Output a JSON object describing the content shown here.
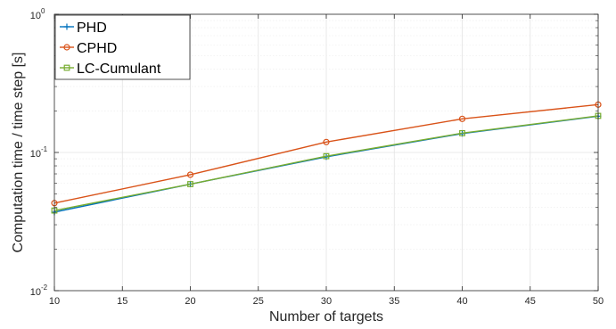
{
  "chart_data": {
    "type": "line",
    "xlabel": "Number of targets",
    "ylabel": "Computation time / time step [s]",
    "x": [
      10,
      20,
      30,
      40,
      50
    ],
    "xlim": [
      10,
      50
    ],
    "xticks": [
      "10",
      "15",
      "20",
      "25",
      "30",
      "35",
      "40",
      "45",
      "50"
    ],
    "y_scale": "log",
    "ylim": [
      0.01,
      1
    ],
    "yticks": [
      {
        "base": "10",
        "exp": "-2"
      },
      {
        "base": "10",
        "exp": "-1"
      },
      {
        "base": "10",
        "exp": "0"
      }
    ],
    "grid": true,
    "legend_position": "top-left",
    "series": [
      {
        "name": "PHD",
        "color": "#0072BD",
        "marker": "plus",
        "values": [
          0.037,
          0.059,
          0.093,
          0.137,
          0.183
        ]
      },
      {
        "name": "CPHD",
        "color": "#D95319",
        "marker": "circle",
        "values": [
          0.043,
          0.069,
          0.119,
          0.175,
          0.222
        ]
      },
      {
        "name": "LC-Cumulant",
        "color": "#77AC30",
        "marker": "square",
        "values": [
          0.038,
          0.059,
          0.094,
          0.138,
          0.184
        ]
      }
    ]
  }
}
